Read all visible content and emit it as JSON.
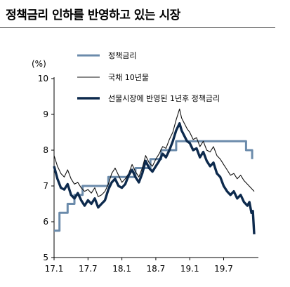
{
  "title": "정책금리 인하를 반영하고 있는 시장",
  "chart_data": {
    "type": "line",
    "unit_label": "(%)",
    "ylim": [
      5,
      10
    ],
    "yticks": [
      5,
      6,
      7,
      8,
      9,
      10
    ],
    "xlim": [
      2017.0,
      2019.95
    ],
    "xticks": [
      {
        "label": "17.1",
        "x": 2017.0
      },
      {
        "label": "17.7",
        "x": 2017.5
      },
      {
        "label": "18.1",
        "x": 2018.0
      },
      {
        "label": "18.7",
        "x": 2018.5
      },
      {
        "label": "19.1",
        "x": 2019.0
      },
      {
        "label": "19.7",
        "x": 2019.5
      }
    ],
    "legend_position": "top-center",
    "series": [
      {
        "name": "정책금리",
        "color": "#6b8bab",
        "style": "step",
        "points": [
          [
            2017.0,
            5.75
          ],
          [
            2017.08,
            5.75
          ],
          [
            2017.08,
            6.25
          ],
          [
            2017.2,
            6.25
          ],
          [
            2017.2,
            6.5
          ],
          [
            2017.3,
            6.5
          ],
          [
            2017.3,
            6.75
          ],
          [
            2017.42,
            6.75
          ],
          [
            2017.42,
            7.0
          ],
          [
            2017.8,
            7.0
          ],
          [
            2017.8,
            7.25
          ],
          [
            2018.2,
            7.25
          ],
          [
            2018.2,
            7.5
          ],
          [
            2018.42,
            7.5
          ],
          [
            2018.42,
            7.75
          ],
          [
            2018.58,
            7.75
          ],
          [
            2018.58,
            8.0
          ],
          [
            2018.8,
            8.0
          ],
          [
            2018.8,
            8.25
          ],
          [
            2019.5,
            8.25
          ],
          [
            2019.5,
            8.25
          ],
          [
            2019.83,
            8.25
          ],
          [
            2019.83,
            8.0
          ],
          [
            2019.92,
            8.0
          ],
          [
            2019.92,
            7.75
          ]
        ]
      },
      {
        "name": "국채 10년물",
        "color": "#111111",
        "style": "thin",
        "points": [
          [
            2017.0,
            7.85
          ],
          [
            2017.05,
            7.55
          ],
          [
            2017.1,
            7.35
          ],
          [
            2017.15,
            7.25
          ],
          [
            2017.2,
            7.45
          ],
          [
            2017.25,
            7.2
          ],
          [
            2017.3,
            7.05
          ],
          [
            2017.35,
            7.1
          ],
          [
            2017.4,
            6.95
          ],
          [
            2017.45,
            6.85
          ],
          [
            2017.5,
            6.9
          ],
          [
            2017.55,
            6.8
          ],
          [
            2017.6,
            6.95
          ],
          [
            2017.65,
            6.7
          ],
          [
            2017.7,
            6.75
          ],
          [
            2017.75,
            6.85
          ],
          [
            2017.8,
            7.05
          ],
          [
            2017.85,
            7.35
          ],
          [
            2017.9,
            7.5
          ],
          [
            2017.95,
            7.3
          ],
          [
            2018.0,
            7.1
          ],
          [
            2018.05,
            7.2
          ],
          [
            2018.1,
            7.35
          ],
          [
            2018.15,
            7.6
          ],
          [
            2018.2,
            7.4
          ],
          [
            2018.25,
            7.25
          ],
          [
            2018.3,
            7.5
          ],
          [
            2018.35,
            7.85
          ],
          [
            2018.4,
            7.65
          ],
          [
            2018.45,
            7.55
          ],
          [
            2018.5,
            7.75
          ],
          [
            2018.55,
            7.9
          ],
          [
            2018.6,
            8.1
          ],
          [
            2018.65,
            8.05
          ],
          [
            2018.7,
            8.3
          ],
          [
            2018.75,
            8.5
          ],
          [
            2018.8,
            8.85
          ],
          [
            2018.85,
            9.15
          ],
          [
            2018.88,
            8.9
          ],
          [
            2018.92,
            8.75
          ],
          [
            2018.96,
            8.6
          ],
          [
            2019.0,
            8.5
          ],
          [
            2019.05,
            8.3
          ],
          [
            2019.1,
            8.35
          ],
          [
            2019.15,
            8.1
          ],
          [
            2019.2,
            8.25
          ],
          [
            2019.25,
            8.0
          ],
          [
            2019.3,
            7.95
          ],
          [
            2019.35,
            8.1
          ],
          [
            2019.4,
            7.85
          ],
          [
            2019.45,
            7.75
          ],
          [
            2019.5,
            7.6
          ],
          [
            2019.55,
            7.45
          ],
          [
            2019.6,
            7.3
          ],
          [
            2019.65,
            7.35
          ],
          [
            2019.7,
            7.2
          ],
          [
            2019.75,
            7.3
          ],
          [
            2019.8,
            7.15
          ],
          [
            2019.85,
            7.05
          ],
          [
            2019.9,
            6.95
          ],
          [
            2019.95,
            6.85
          ]
        ]
      },
      {
        "name": "선물시장에 반영된 1년후 정책금리",
        "color": "#0d2a4d",
        "style": "thick",
        "points": [
          [
            2017.0,
            7.55
          ],
          [
            2017.05,
            7.2
          ],
          [
            2017.1,
            6.95
          ],
          [
            2017.15,
            6.9
          ],
          [
            2017.2,
            7.05
          ],
          [
            2017.25,
            6.75
          ],
          [
            2017.3,
            6.65
          ],
          [
            2017.35,
            6.8
          ],
          [
            2017.4,
            6.6
          ],
          [
            2017.45,
            6.45
          ],
          [
            2017.5,
            6.6
          ],
          [
            2017.55,
            6.5
          ],
          [
            2017.6,
            6.65
          ],
          [
            2017.65,
            6.4
          ],
          [
            2017.7,
            6.5
          ],
          [
            2017.75,
            6.6
          ],
          [
            2017.8,
            6.9
          ],
          [
            2017.85,
            7.1
          ],
          [
            2017.9,
            7.2
          ],
          [
            2017.95,
            7.0
          ],
          [
            2018.0,
            6.95
          ],
          [
            2018.05,
            7.05
          ],
          [
            2018.1,
            7.3
          ],
          [
            2018.15,
            7.45
          ],
          [
            2018.2,
            7.25
          ],
          [
            2018.25,
            7.1
          ],
          [
            2018.3,
            7.35
          ],
          [
            2018.35,
            7.7
          ],
          [
            2018.4,
            7.5
          ],
          [
            2018.45,
            7.4
          ],
          [
            2018.5,
            7.55
          ],
          [
            2018.55,
            7.7
          ],
          [
            2018.6,
            7.9
          ],
          [
            2018.65,
            7.8
          ],
          [
            2018.7,
            8.0
          ],
          [
            2018.75,
            8.25
          ],
          [
            2018.8,
            8.55
          ],
          [
            2018.85,
            8.75
          ],
          [
            2018.88,
            8.55
          ],
          [
            2018.92,
            8.4
          ],
          [
            2018.96,
            8.25
          ],
          [
            2019.0,
            8.2
          ],
          [
            2019.05,
            8.0
          ],
          [
            2019.1,
            8.05
          ],
          [
            2019.15,
            7.8
          ],
          [
            2019.2,
            7.95
          ],
          [
            2019.25,
            7.7
          ],
          [
            2019.3,
            7.55
          ],
          [
            2019.35,
            7.65
          ],
          [
            2019.4,
            7.35
          ],
          [
            2019.45,
            7.25
          ],
          [
            2019.5,
            7.0
          ],
          [
            2019.55,
            6.85
          ],
          [
            2019.6,
            6.75
          ],
          [
            2019.65,
            6.85
          ],
          [
            2019.7,
            6.65
          ],
          [
            2019.75,
            6.75
          ],
          [
            2019.8,
            6.55
          ],
          [
            2019.85,
            6.45
          ],
          [
            2019.88,
            6.55
          ],
          [
            2019.91,
            6.25
          ],
          [
            2019.93,
            6.3
          ],
          [
            2019.95,
            5.65
          ]
        ]
      }
    ]
  }
}
